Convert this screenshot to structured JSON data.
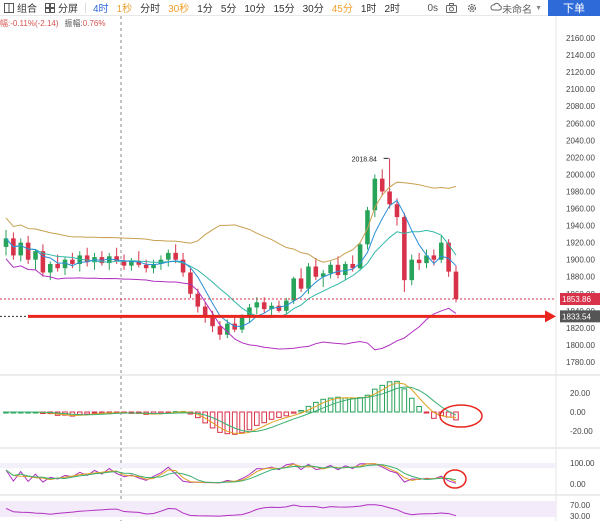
{
  "toolbar": {
    "combo_label": "组合",
    "split_label": "分屏",
    "timeframes": [
      "4时",
      "1秒",
      "分时",
      "30秒",
      "1分",
      "5分",
      "10分",
      "15分",
      "30分",
      "45分",
      "1时",
      "2时"
    ],
    "active_timeframe": "4时",
    "countdown": "0s",
    "unnamed_label": "未命名",
    "order_button": "下单"
  },
  "info": {
    "change": "幅:-0.11%(-2.14)",
    "amplitude_label": "振幅:",
    "amplitude_value": "0.76%"
  },
  "price_axis": {
    "ticks": [
      "2160.00",
      "2140.00",
      "2120.00",
      "2100.00",
      "2080.00",
      "2060.00",
      "2040.00",
      "2020.00",
      "2000.00",
      "1980.00",
      "1960.00",
      "1940.00",
      "1920.00",
      "1900.00",
      "1880.00",
      "1860.00",
      "1840.00",
      "1820.00",
      "1800.00",
      "1780.00"
    ],
    "current_price": "1853.86",
    "marked_price": "1833.54",
    "high_annotation": "2018.84"
  },
  "macd_axis": {
    "ticks": [
      "20.00",
      "0.00",
      "-20.00"
    ]
  },
  "kdj_axis": {
    "ticks": [
      "100.00",
      "0.00"
    ]
  },
  "rsi_axis": {
    "ticks": [
      "70.00",
      "30.00"
    ]
  },
  "colors": {
    "up": "#27a35a",
    "down": "#d8324a",
    "accent": "#2f6bd8",
    "arrow": "#e8261f",
    "boll_upper": "#c8a050",
    "boll_lower": "#b030c0",
    "ma_fast": "#2a8fd8",
    "ma_slow": "#30b8a8"
  },
  "chart_data": {
    "type": "candlestick",
    "ohlc": [
      [
        1915,
        1935,
        1905,
        1925
      ],
      [
        1925,
        1932,
        1900,
        1905
      ],
      [
        1905,
        1925,
        1898,
        1920
      ],
      [
        1920,
        1928,
        1895,
        1900
      ],
      [
        1900,
        1912,
        1888,
        1910
      ],
      [
        1910,
        1918,
        1880,
        1885
      ],
      [
        1885,
        1898,
        1876,
        1895
      ],
      [
        1895,
        1906,
        1886,
        1890
      ],
      [
        1890,
        1903,
        1882,
        1900
      ],
      [
        1900,
        1908,
        1890,
        1895
      ],
      [
        1895,
        1910,
        1886,
        1905
      ],
      [
        1905,
        1914,
        1892,
        1897
      ],
      [
        1897,
        1908,
        1888,
        1903
      ],
      [
        1903,
        1910,
        1893,
        1896
      ],
      [
        1896,
        1908,
        1888,
        1904
      ],
      [
        1904,
        1914,
        1895,
        1898
      ],
      [
        1898,
        1906,
        1888,
        1893
      ],
      [
        1893,
        1902,
        1887,
        1898
      ],
      [
        1898,
        1910,
        1891,
        1894
      ],
      [
        1894,
        1900,
        1885,
        1890
      ],
      [
        1890,
        1900,
        1884,
        1895
      ],
      [
        1895,
        1905,
        1888,
        1900
      ],
      [
        1900,
        1912,
        1892,
        1908
      ],
      [
        1908,
        1918,
        1896,
        1900
      ],
      [
        1900,
        1908,
        1880,
        1885
      ],
      [
        1885,
        1890,
        1855,
        1860
      ],
      [
        1860,
        1866,
        1838,
        1845
      ],
      [
        1845,
        1850,
        1826,
        1832
      ],
      [
        1832,
        1840,
        1815,
        1822
      ],
      [
        1822,
        1828,
        1806,
        1812
      ],
      [
        1812,
        1830,
        1808,
        1825
      ],
      [
        1825,
        1833,
        1815,
        1818
      ],
      [
        1818,
        1836,
        1814,
        1832
      ],
      [
        1832,
        1848,
        1826,
        1844
      ],
      [
        1844,
        1856,
        1836,
        1850
      ],
      [
        1850,
        1856,
        1838,
        1842
      ],
      [
        1842,
        1850,
        1832,
        1846
      ],
      [
        1846,
        1852,
        1838,
        1840
      ],
      [
        1840,
        1855,
        1836,
        1852
      ],
      [
        1852,
        1880,
        1848,
        1878
      ],
      [
        1878,
        1890,
        1862,
        1866
      ],
      [
        1866,
        1896,
        1860,
        1892
      ],
      [
        1892,
        1902,
        1876,
        1880
      ],
      [
        1880,
        1888,
        1868,
        1884
      ],
      [
        1884,
        1898,
        1878,
        1894
      ],
      [
        1894,
        1904,
        1878,
        1882
      ],
      [
        1882,
        1898,
        1876,
        1895
      ],
      [
        1895,
        1905,
        1886,
        1890
      ],
      [
        1890,
        1920,
        1888,
        1918
      ],
      [
        1918,
        1962,
        1912,
        1958
      ],
      [
        1958,
        2000,
        1950,
        1995
      ],
      [
        1995,
        2006,
        1975,
        1980
      ],
      [
        1980,
        2018.84,
        1960,
        1965
      ],
      [
        1965,
        1972,
        1940,
        1950
      ],
      [
        1950,
        1955,
        1862,
        1876
      ],
      [
        1876,
        1906,
        1870,
        1900
      ],
      [
        1900,
        1908,
        1888,
        1896
      ],
      [
        1896,
        1912,
        1890,
        1905
      ],
      [
        1905,
        1912,
        1893,
        1900
      ],
      [
        1900,
        1928,
        1896,
        1920
      ],
      [
        1920,
        1924,
        1880,
        1886
      ],
      [
        1886,
        1893,
        1850,
        1853.86
      ]
    ]
  }
}
